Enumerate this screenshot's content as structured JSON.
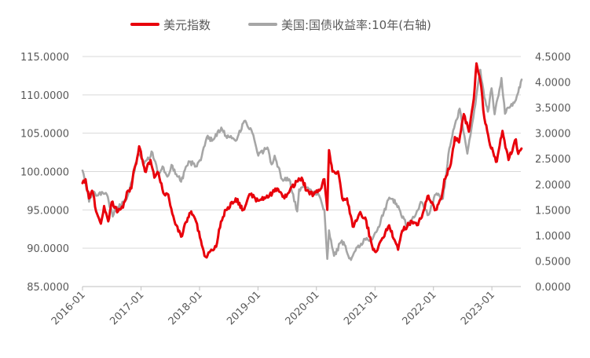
{
  "chart_data": {
    "type": "line",
    "title": "",
    "xlabel": "",
    "ylabel_left": "",
    "ylabel_right": "",
    "x_ticks": [
      "2016-01",
      "2017-01",
      "2018-01",
      "2019-01",
      "2020-01",
      "2021-01",
      "2022-01",
      "2023-01"
    ],
    "x_range": [
      "2016-01",
      "2023-07"
    ],
    "y_left": {
      "ylim": [
        85,
        115
      ],
      "ticks": [
        "85.0000",
        "90.0000",
        "95.0000",
        "100.0000",
        "105.0000",
        "110.0000",
        "115.0000"
      ]
    },
    "y_right": {
      "ylim": [
        0,
        4.5
      ],
      "ticks": [
        "0.0000",
        "0.5000",
        "1.0000",
        "1.5000",
        "2.0000",
        "2.5000",
        "3.0000",
        "3.5000",
        "4.0000",
        "4.5000"
      ]
    },
    "grid": "horizontal",
    "legend_position": "top",
    "series": [
      {
        "name": "美元指数",
        "axis": "left",
        "color": "#e8000b",
        "points": [
          [
            "2016-01-01",
            98.5
          ],
          [
            "2016-01-20",
            99.0
          ],
          [
            "2016-02-10",
            96.5
          ],
          [
            "2016-03-01",
            97.5
          ],
          [
            "2016-04-01",
            94.5
          ],
          [
            "2016-04-25",
            93.2
          ],
          [
            "2016-05-15",
            95.5
          ],
          [
            "2016-06-10",
            93.5
          ],
          [
            "2016-07-01",
            96.0
          ],
          [
            "2016-08-10",
            94.8
          ],
          [
            "2016-09-10",
            95.3
          ],
          [
            "2016-10-10",
            97.5
          ],
          [
            "2016-11-01",
            97.8
          ],
          [
            "2016-11-15",
            100.0
          ],
          [
            "2016-12-01",
            101.0
          ],
          [
            "2016-12-20",
            103.3
          ],
          [
            "2017-01-10",
            101.5
          ],
          [
            "2017-01-25",
            100.0
          ],
          [
            "2017-03-01",
            101.5
          ],
          [
            "2017-03-25",
            99.2
          ],
          [
            "2017-04-20",
            99.8
          ],
          [
            "2017-05-20",
            97.2
          ],
          [
            "2017-06-20",
            97.0
          ],
          [
            "2017-07-15",
            94.5
          ],
          [
            "2017-08-10",
            93.0
          ],
          [
            "2017-09-08",
            91.5
          ],
          [
            "2017-10-20",
            94.0
          ],
          [
            "2017-11-10",
            94.8
          ],
          [
            "2017-12-10",
            93.5
          ],
          [
            "2018-01-10",
            91.0
          ],
          [
            "2018-02-01",
            89.0
          ],
          [
            "2018-02-15",
            88.8
          ],
          [
            "2018-03-15",
            89.8
          ],
          [
            "2018-04-15",
            90.2
          ],
          [
            "2018-05-15",
            93.5
          ],
          [
            "2018-06-15",
            95.0
          ],
          [
            "2018-08-15",
            96.5
          ],
          [
            "2018-10-01",
            95.0
          ],
          [
            "2018-11-15",
            97.0
          ],
          [
            "2019-01-01",
            96.2
          ],
          [
            "2019-02-15",
            96.5
          ],
          [
            "2019-04-01",
            97.2
          ],
          [
            "2019-05-01",
            97.8
          ],
          [
            "2019-06-15",
            96.5
          ],
          [
            "2019-08-01",
            98.0
          ],
          [
            "2019-10-01",
            99.2
          ],
          [
            "2019-11-01",
            97.5
          ],
          [
            "2019-12-15",
            97.0
          ],
          [
            "2020-01-20",
            97.5
          ],
          [
            "2020-02-20",
            99.0
          ],
          [
            "2020-03-09",
            95.0
          ],
          [
            "2020-03-20",
            102.8
          ],
          [
            "2020-04-10",
            100.0
          ],
          [
            "2020-05-15",
            100.0
          ],
          [
            "2020-06-10",
            96.5
          ],
          [
            "2020-07-10",
            96.5
          ],
          [
            "2020-08-15",
            92.8
          ],
          [
            "2020-09-25",
            94.5
          ],
          [
            "2020-11-01",
            94.0
          ],
          [
            "2020-12-15",
            90.2
          ],
          [
            "2021-01-05",
            89.5
          ],
          [
            "2021-03-30",
            93.0
          ],
          [
            "2021-05-25",
            89.8
          ],
          [
            "2021-06-20",
            92.3
          ],
          [
            "2021-08-20",
            93.5
          ],
          [
            "2021-09-20",
            93.0
          ],
          [
            "2021-10-20",
            94.0
          ],
          [
            "2021-11-25",
            96.8
          ],
          [
            "2022-01-15",
            95.0
          ],
          [
            "2022-02-20",
            96.5
          ],
          [
            "2022-03-10",
            99.0
          ],
          [
            "2022-04-20",
            101.0
          ],
          [
            "2022-05-15",
            104.5
          ],
          [
            "2022-06-10",
            103.8
          ],
          [
            "2022-07-10",
            107.5
          ],
          [
            "2022-08-10",
            105.2
          ],
          [
            "2022-09-10",
            109.5
          ],
          [
            "2022-09-27",
            114.1
          ],
          [
            "2022-10-20",
            112.0
          ],
          [
            "2022-11-15",
            107.0
          ],
          [
            "2022-12-15",
            104.0
          ],
          [
            "2023-01-15",
            102.0
          ],
          [
            "2023-02-01",
            101.3
          ],
          [
            "2023-03-08",
            105.3
          ],
          [
            "2023-04-15",
            101.5
          ],
          [
            "2023-05-31",
            104.2
          ],
          [
            "2023-06-15",
            102.3
          ],
          [
            "2023-07-05",
            103.0
          ]
        ]
      },
      {
        "name": "美国:国债收益率:10年(右轴)",
        "axis": "right",
        "color": "#a6a6a6",
        "points": [
          [
            "2016-01-01",
            2.27
          ],
          [
            "2016-01-20",
            2.02
          ],
          [
            "2016-02-11",
            1.66
          ],
          [
            "2016-03-01",
            1.85
          ],
          [
            "2016-04-01",
            1.78
          ],
          [
            "2016-05-01",
            1.85
          ],
          [
            "2016-06-01",
            1.8
          ],
          [
            "2016-07-08",
            1.37
          ],
          [
            "2016-08-01",
            1.55
          ],
          [
            "2016-09-01",
            1.6
          ],
          [
            "2016-10-01",
            1.7
          ],
          [
            "2016-11-10",
            2.15
          ],
          [
            "2016-12-15",
            2.6
          ],
          [
            "2017-01-15",
            2.4
          ],
          [
            "2017-03-13",
            2.62
          ],
          [
            "2017-04-18",
            2.2
          ],
          [
            "2017-05-15",
            2.35
          ],
          [
            "2017-06-14",
            2.15
          ],
          [
            "2017-07-10",
            2.38
          ],
          [
            "2017-09-08",
            2.05
          ],
          [
            "2017-10-25",
            2.45
          ],
          [
            "2017-12-15",
            2.35
          ],
          [
            "2018-01-15",
            2.55
          ],
          [
            "2018-02-21",
            2.95
          ],
          [
            "2018-03-20",
            2.85
          ],
          [
            "2018-05-17",
            3.11
          ],
          [
            "2018-06-15",
            2.95
          ],
          [
            "2018-08-15",
            2.85
          ],
          [
            "2018-10-08",
            3.24
          ],
          [
            "2018-11-15",
            3.1
          ],
          [
            "2018-12-15",
            2.8
          ],
          [
            "2019-01-03",
            2.56
          ],
          [
            "2019-03-01",
            2.72
          ],
          [
            "2019-03-27",
            2.39
          ],
          [
            "2019-04-15",
            2.56
          ],
          [
            "2019-06-01",
            2.1
          ],
          [
            "2019-07-15",
            2.1
          ],
          [
            "2019-09-03",
            1.47
          ],
          [
            "2019-09-15",
            1.9
          ],
          [
            "2019-11-08",
            1.94
          ],
          [
            "2019-12-15",
            1.85
          ],
          [
            "2020-01-15",
            1.8
          ],
          [
            "2020-02-20",
            1.5
          ],
          [
            "2020-03-09",
            0.54
          ],
          [
            "2020-03-20",
            1.1
          ],
          [
            "2020-04-20",
            0.6
          ],
          [
            "2020-06-08",
            0.9
          ],
          [
            "2020-08-04",
            0.52
          ],
          [
            "2020-09-01",
            0.7
          ],
          [
            "2020-11-10",
            0.95
          ],
          [
            "2020-12-15",
            0.92
          ],
          [
            "2021-01-15",
            1.1
          ],
          [
            "2021-02-25",
            1.45
          ],
          [
            "2021-03-31",
            1.74
          ],
          [
            "2021-05-15",
            1.62
          ],
          [
            "2021-07-19",
            1.18
          ],
          [
            "2021-08-15",
            1.28
          ],
          [
            "2021-10-20",
            1.65
          ],
          [
            "2021-12-01",
            1.4
          ],
          [
            "2022-01-15",
            1.8
          ],
          [
            "2022-03-01",
            1.72
          ],
          [
            "2022-04-10",
            2.7
          ],
          [
            "2022-05-10",
            3.1
          ],
          [
            "2022-06-14",
            3.48
          ],
          [
            "2022-08-01",
            2.6
          ],
          [
            "2022-09-01",
            3.2
          ],
          [
            "2022-10-21",
            4.24
          ],
          [
            "2022-11-15",
            3.7
          ],
          [
            "2022-12-07",
            3.42
          ],
          [
            "2022-12-30",
            3.88
          ],
          [
            "2023-01-18",
            3.37
          ],
          [
            "2023-03-02",
            4.08
          ],
          [
            "2023-03-24",
            3.38
          ],
          [
            "2023-04-15",
            3.5
          ],
          [
            "2023-05-15",
            3.6
          ],
          [
            "2023-05-31",
            3.65
          ],
          [
            "2023-06-15",
            3.8
          ],
          [
            "2023-07-06",
            4.05
          ]
        ]
      }
    ]
  }
}
